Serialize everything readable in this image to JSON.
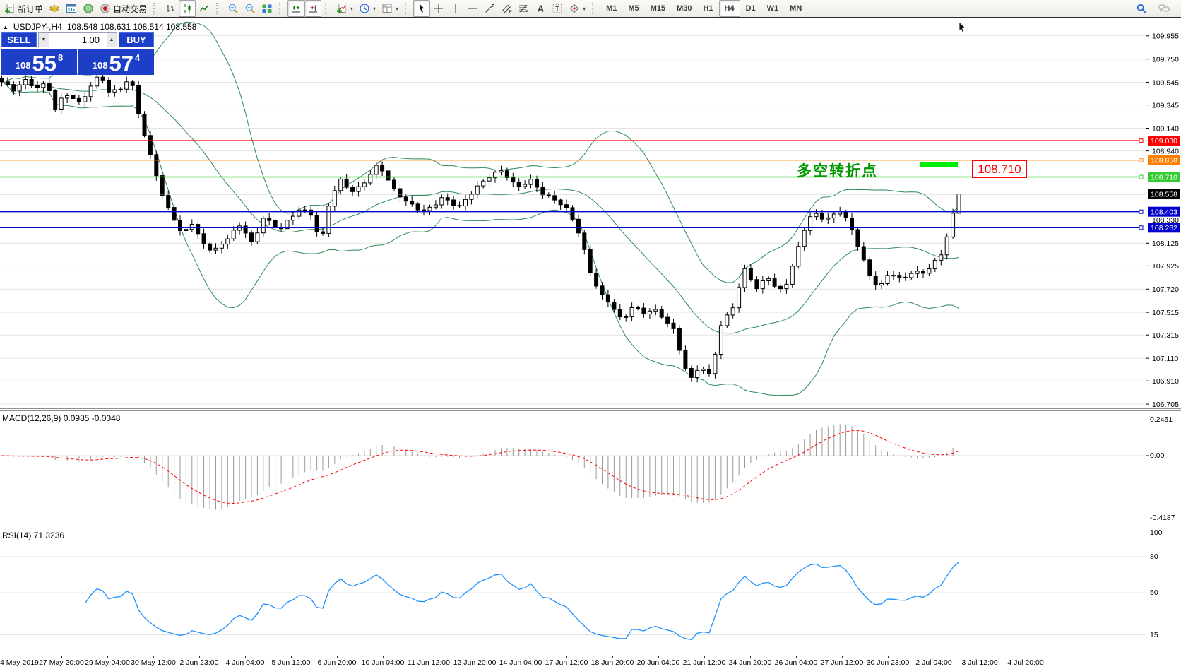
{
  "toolbar": {
    "groups": [
      {
        "buttons": [
          {
            "icon": "new-order",
            "label": "新订单",
            "name": "new-order-button"
          },
          {
            "icon": "market-watch",
            "name": "market-watch-button"
          },
          {
            "icon": "data-window",
            "name": "data-window-button"
          },
          {
            "icon": "navigator",
            "name": "navigator-button"
          },
          {
            "icon": "autotrade",
            "label": "自动交易",
            "name": "autotrade-button"
          }
        ]
      },
      {
        "buttons": [
          {
            "icon": "bar-chart",
            "name": "bar-chart-button"
          },
          {
            "icon": "candlestick",
            "pressed": true,
            "name": "candlestick-button"
          },
          {
            "icon": "line-chart",
            "name": "line-chart-button"
          }
        ]
      },
      {
        "buttons": [
          {
            "icon": "zoom-in",
            "name": "zoom-in-button"
          },
          {
            "icon": "zoom-out",
            "name": "zoom-out-button"
          },
          {
            "icon": "tile-windows",
            "name": "tile-windows-button"
          }
        ]
      },
      {
        "buttons": [
          {
            "icon": "autoscroll",
            "pressed": true,
            "name": "autoscroll-button"
          },
          {
            "icon": "chart-shift",
            "pressed": true,
            "name": "chart-shift-button"
          }
        ]
      },
      {
        "buttons": [
          {
            "icon": "indicators",
            "dropdown": true,
            "name": "indicators-button"
          },
          {
            "icon": "periods",
            "dropdown": true,
            "name": "periods-button"
          },
          {
            "icon": "templates",
            "dropdown": true,
            "name": "templates-button"
          }
        ]
      },
      {
        "buttons": [
          {
            "icon": "cursor",
            "pressed": true,
            "name": "cursor-button"
          },
          {
            "icon": "crosshair",
            "name": "crosshair-button"
          },
          {
            "icon": "vline",
            "name": "vertical-line-button"
          },
          {
            "icon": "hline",
            "name": "horizontal-line-button"
          },
          {
            "icon": "trendline",
            "name": "trendline-button"
          },
          {
            "icon": "channel",
            "name": "equidistant-channel-button"
          },
          {
            "icon": "fibonacci",
            "name": "fibonacci-button"
          },
          {
            "icon": "text",
            "name": "text-button"
          },
          {
            "icon": "label",
            "name": "text-label-button"
          },
          {
            "icon": "shapes",
            "dropdown": true,
            "name": "arrows-button"
          }
        ]
      },
      {
        "type": "timeframes",
        "buttons": [
          {
            "label": "M1",
            "name": "timeframe-m1"
          },
          {
            "label": "M5",
            "name": "timeframe-m5"
          },
          {
            "label": "M15",
            "name": "timeframe-m15"
          },
          {
            "label": "M30",
            "name": "timeframe-m30"
          },
          {
            "label": "H1",
            "name": "timeframe-h1"
          },
          {
            "label": "H4",
            "pressed": true,
            "name": "timeframe-h4"
          },
          {
            "label": "D1",
            "name": "timeframe-d1"
          },
          {
            "label": "W1",
            "name": "timeframe-w1"
          },
          {
            "label": "MN",
            "name": "timeframe-mn"
          }
        ]
      }
    ],
    "right_icons": [
      {
        "icon": "search",
        "name": "search-button"
      },
      {
        "icon": "chat",
        "name": "chat-button"
      }
    ]
  },
  "chart_header": {
    "collapse_icon": "▲",
    "title": "USDJPY-,H4",
    "ohlc": "108.548 108.631 108.514 108.558"
  },
  "one_click": {
    "sell_label": "SELL",
    "buy_label": "BUY",
    "volume": "1.00",
    "spin_down": "▼",
    "spin_up": "▲",
    "sell_price_prefix": "108",
    "sell_price_big": "55",
    "sell_price_sup": "8",
    "buy_price_prefix": "108",
    "buy_price_big": "57",
    "buy_price_sup": "4",
    "panel_color": "#1d3fc8"
  },
  "annotation": {
    "text": "多空转折点",
    "price_label": "108.710",
    "text_color": "#009900",
    "bar_color": "#00ee00",
    "label_color": "#ff0000"
  },
  "price_axis": {
    "ticks": [
      {
        "label": "109.955",
        "price": 109.955
      },
      {
        "label": "109.750",
        "price": 109.75
      },
      {
        "label": "109.545",
        "price": 109.545
      },
      {
        "label": "109.345",
        "price": 109.345
      },
      {
        "label": "109.140",
        "price": 109.14
      },
      {
        "label": "108.940",
        "price": 108.94
      },
      {
        "label": "108.330",
        "price": 108.33
      },
      {
        "label": "108.125",
        "price": 108.125
      },
      {
        "label": "107.925",
        "price": 107.925
      },
      {
        "label": "107.720",
        "price": 107.72
      },
      {
        "label": "107.515",
        "price": 107.515
      },
      {
        "label": "107.315",
        "price": 107.315
      },
      {
        "label": "107.110",
        "price": 107.11
      },
      {
        "label": "106.910",
        "price": 106.91
      },
      {
        "label": "106.705",
        "price": 106.705
      }
    ]
  },
  "hlines": [
    {
      "label": "109.030",
      "price": 109.03,
      "color": "#ff0000",
      "name": "resistance-line-109030"
    },
    {
      "label": "108.858",
      "price": 108.858,
      "color": "#ff7e00",
      "name": "resistance-line-108858"
    },
    {
      "label": "108.710",
      "price": 108.71,
      "color": "#33cc33",
      "name": "pivot-line-108710"
    },
    {
      "label": "108.403",
      "price": 108.403,
      "color": "#0000cc",
      "name": "support-line-108403"
    },
    {
      "label": "108.262",
      "price": 108.262,
      "color": "#0000cc",
      "name": "support-line-108262"
    }
  ],
  "current_price": {
    "label": "108.558",
    "price": 108.558,
    "line_color": "#b8b8b8",
    "badge_bg": "#000000"
  },
  "macd_pane": {
    "title": "MACD(12,26,9)",
    "values": "0.0985 -0.0048",
    "axis_top": "0.2451",
    "axis_zero": "0.00",
    "axis_bottom": "-0.4187"
  },
  "rsi_pane": {
    "title": "RSI(14)",
    "value": "71.3236",
    "axis": [
      {
        "label": "100",
        "value": 100
      },
      {
        "label": "80",
        "value": 80
      },
      {
        "label": "50",
        "value": 50
      },
      {
        "label": "15",
        "value": 15
      }
    ]
  },
  "time_axis": {
    "labels": [
      "4 May 2019",
      "27 May 20:00",
      "29 May 04:00",
      "30 May 12:00",
      "2 Jun 23:00",
      "4 Jun 04:00",
      "5 Jun 12:00",
      "6 Jun 20:00",
      "10 Jun 04:00",
      "11 Jun 12:00",
      "12 Jun 20:00",
      "14 Jun 04:00",
      "17 Jun 12:00",
      "18 Jun 20:00",
      "20 Jun 04:00",
      "21 Jun 12:00",
      "24 Jun 20:00",
      "26 Jun 04:00",
      "27 Jun 12:00",
      "30 Jun 23:00",
      "2 Jul 04:00",
      "3 Jul 12:00",
      "4 Jul 20:00"
    ]
  },
  "chart_data": {
    "type": "candlestick",
    "symbol": "USDJPY-",
    "period": "H4",
    "title": "USDJPY-,H4",
    "ohlc_display": {
      "open": 108.548,
      "high": 108.631,
      "low": 108.514,
      "close": 108.558
    },
    "bid": 108.558,
    "ask": 108.574,
    "num_candles": 162,
    "price_top": 110.097,
    "price_bottom": 106.668,
    "last_high": 108.63,
    "levels": [
      109.03,
      108.858,
      108.71,
      108.403,
      108.262
    ],
    "close_path_anchors": [
      [
        0.0,
        109.55
      ],
      [
        0.012,
        109.47
      ],
      [
        0.025,
        109.56
      ],
      [
        0.038,
        109.5
      ],
      [
        0.048,
        109.55
      ],
      [
        0.055,
        109.28
      ],
      [
        0.066,
        109.45
      ],
      [
        0.08,
        109.36
      ],
      [
        0.094,
        109.52
      ],
      [
        0.103,
        109.63
      ],
      [
        0.112,
        109.44
      ],
      [
        0.125,
        109.5
      ],
      [
        0.135,
        109.58
      ],
      [
        0.143,
        109.28
      ],
      [
        0.151,
        109.0
      ],
      [
        0.158,
        108.84
      ],
      [
        0.168,
        108.52
      ],
      [
        0.178,
        108.38
      ],
      [
        0.188,
        108.2
      ],
      [
        0.198,
        108.32
      ],
      [
        0.208,
        108.14
      ],
      [
        0.221,
        108.04
      ],
      [
        0.235,
        108.17
      ],
      [
        0.25,
        108.3
      ],
      [
        0.262,
        108.1
      ],
      [
        0.273,
        108.35
      ],
      [
        0.29,
        108.25
      ],
      [
        0.31,
        108.42
      ],
      [
        0.325,
        108.37
      ],
      [
        0.333,
        108.1
      ],
      [
        0.343,
        108.53
      ],
      [
        0.354,
        108.68
      ],
      [
        0.368,
        108.56
      ],
      [
        0.383,
        108.71
      ],
      [
        0.394,
        108.84
      ],
      [
        0.408,
        108.61
      ],
      [
        0.423,
        108.48
      ],
      [
        0.442,
        108.41
      ],
      [
        0.46,
        108.52
      ],
      [
        0.478,
        108.44
      ],
      [
        0.493,
        108.6
      ],
      [
        0.508,
        108.71
      ],
      [
        0.523,
        108.76
      ],
      [
        0.538,
        108.62
      ],
      [
        0.552,
        108.69
      ],
      [
        0.567,
        108.54
      ],
      [
        0.582,
        108.49
      ],
      [
        0.593,
        108.41
      ],
      [
        0.604,
        108.2
      ],
      [
        0.615,
        107.86
      ],
      [
        0.626,
        107.66
      ],
      [
        0.637,
        107.59
      ],
      [
        0.648,
        107.44
      ],
      [
        0.659,
        107.57
      ],
      [
        0.67,
        107.5
      ],
      [
        0.681,
        107.54
      ],
      [
        0.692,
        107.47
      ],
      [
        0.703,
        107.35
      ],
      [
        0.711,
        107.1
      ],
      [
        0.719,
        106.9
      ],
      [
        0.729,
        107.04
      ],
      [
        0.74,
        106.96
      ],
      [
        0.752,
        107.42
      ],
      [
        0.763,
        107.54
      ],
      [
        0.777,
        107.9
      ],
      [
        0.789,
        107.72
      ],
      [
        0.8,
        107.85
      ],
      [
        0.811,
        107.69
      ],
      [
        0.822,
        107.79
      ],
      [
        0.832,
        108.08
      ],
      [
        0.841,
        108.32
      ],
      [
        0.849,
        108.4
      ],
      [
        0.862,
        108.33
      ],
      [
        0.876,
        108.41
      ],
      [
        0.887,
        108.27
      ],
      [
        0.896,
        108.08
      ],
      [
        0.906,
        107.85
      ],
      [
        0.917,
        107.72
      ],
      [
        0.928,
        107.87
      ],
      [
        0.94,
        107.8
      ],
      [
        0.951,
        107.88
      ],
      [
        0.962,
        107.86
      ],
      [
        0.973,
        107.93
      ],
      [
        0.983,
        108.04
      ],
      [
        0.991,
        108.3
      ],
      [
        1.0,
        108.558
      ]
    ],
    "indicators": [
      {
        "name": "Bollinger Bands",
        "period": 20,
        "deviation": 2,
        "color": "#2E8B57"
      },
      {
        "name": "MACD",
        "fast": 12,
        "slow": 26,
        "signal": 9,
        "histogram_color": "#999999",
        "signal_color": "#ff0000",
        "last_main": 0.0985,
        "last_signal": -0.0048
      },
      {
        "name": "RSI",
        "period": 14,
        "color": "#1E90FF",
        "last_value": 71.3236
      }
    ]
  }
}
